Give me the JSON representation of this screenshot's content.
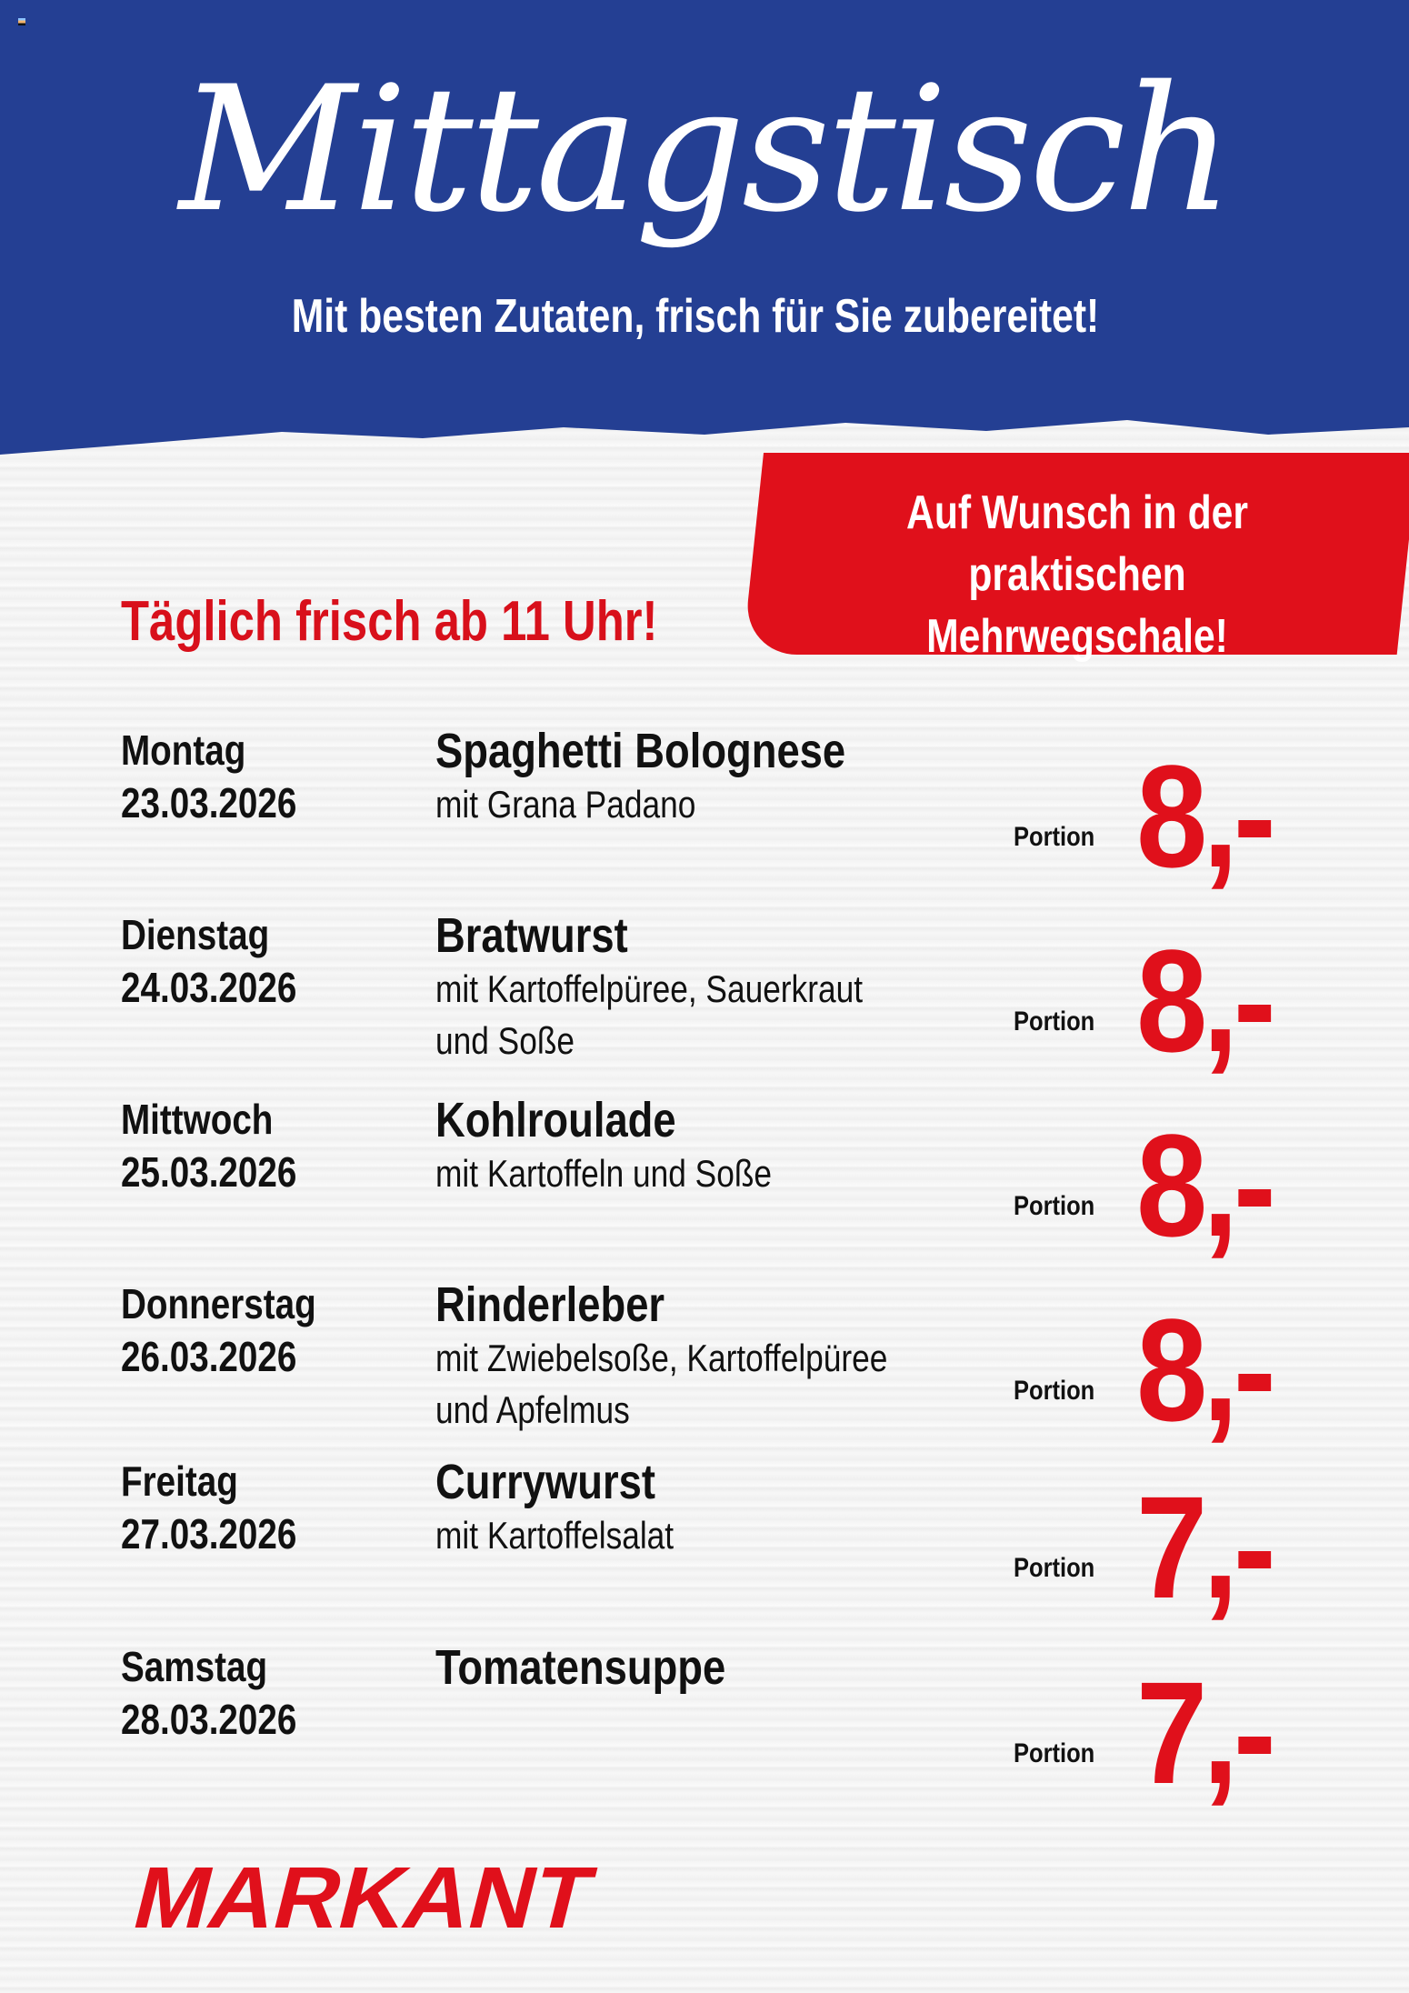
{
  "header": {
    "title": "Mittagstisch",
    "subtitle": "Mit besten Zutaten, frisch für Sie zubereitet!",
    "background_color": "#243f93"
  },
  "banner": {
    "text": "Auf Wunsch in der praktischen Mehrwegschale!",
    "color": "#e0101b"
  },
  "daily_note": "Täglich frisch ab 11 Uhr!",
  "menu": [
    {
      "day": "Montag",
      "date": "23.03.2026",
      "dish": "Spaghetti Bolognese",
      "description": "mit Grana Padano",
      "unit": "Portion",
      "price": "8,-"
    },
    {
      "day": "Dienstag",
      "date": "24.03.2026",
      "dish": "Bratwurst",
      "description": "mit Kartoffelpüree, Sauerkraut\nund Soße",
      "unit": "Portion",
      "price": "8,-"
    },
    {
      "day": "Mittwoch",
      "date": "25.03.2026",
      "dish": "Kohlroulade",
      "description": "mit Kartoffeln und Soße",
      "unit": "Portion",
      "price": "8,-"
    },
    {
      "day": "Donnerstag",
      "date": "26.03.2026",
      "dish": "Rinderleber",
      "description": "mit Zwiebelsoße, Kartoffelpüree\nund Apfelmus",
      "unit": "Portion",
      "price": "8,-"
    },
    {
      "day": "Freitag",
      "date": "27.03.2026",
      "dish": "Currywurst",
      "description": "mit Kartoffelsalat",
      "unit": "Portion",
      "price": "7,-"
    },
    {
      "day": "Samstag",
      "date": "28.03.2026",
      "dish": "Tomatensuppe",
      "description": "",
      "unit": "Portion",
      "price": "7,-"
    }
  ],
  "logo": {
    "text": "MARKANT",
    "color": "#e0101b"
  }
}
